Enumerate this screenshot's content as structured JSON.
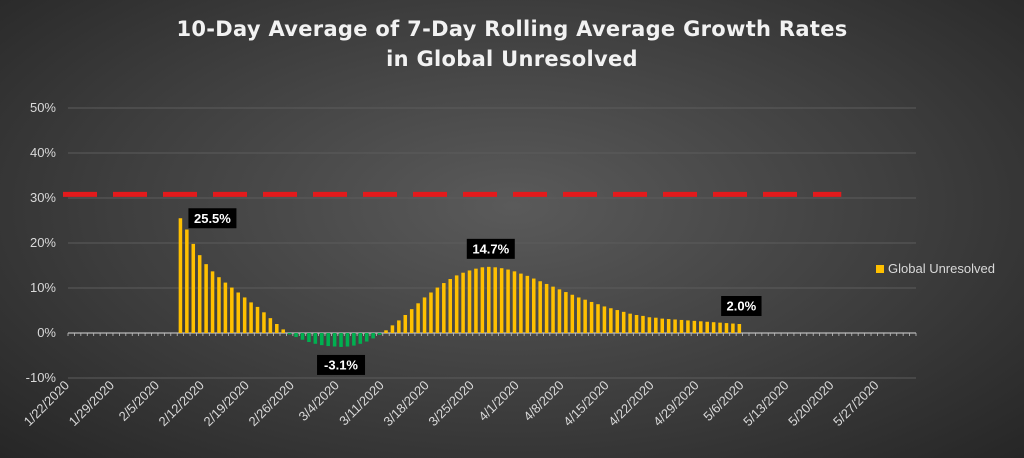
{
  "chart_data": {
    "type": "bar",
    "title_line1": "10-Day Average of 7-Day Rolling Average Growth Rates",
    "title_line2": "in Global Unresolved",
    "xlabel": "",
    "ylabel": "",
    "ylim": [
      -10,
      50
    ],
    "y_ticks": [
      -10,
      0,
      10,
      20,
      30,
      40,
      50
    ],
    "y_tick_labels": [
      "-10%",
      "0%",
      "10%",
      "20%",
      "30%",
      "40%",
      "50%"
    ],
    "x_start": "2020-01-22",
    "x_end": "2020-06-02",
    "x_tick_labels": [
      "1/22/2020",
      "1/29/2020",
      "2/5/2020",
      "2/12/2020",
      "2/19/2020",
      "2/26/2020",
      "3/4/2020",
      "3/11/2020",
      "3/18/2020",
      "3/25/2020",
      "4/1/2020",
      "4/8/2020",
      "4/15/2020",
      "4/22/2020",
      "4/29/2020",
      "5/6/2020",
      "5/13/2020",
      "5/20/2020",
      "5/27/2020"
    ],
    "grid": true,
    "legend_position": "right",
    "reference_line": {
      "y": 30.8,
      "x_from": "2020-01-22",
      "x_to": "2020-05-19",
      "color": "#e31a1c",
      "style": "dashed"
    },
    "positive_color": "#ffc000",
    "negative_color": "#00b050",
    "series": [
      {
        "name": "Global Unresolved",
        "x": [
          "2/8/2020",
          "2/9/2020",
          "2/10/2020",
          "2/11/2020",
          "2/12/2020",
          "2/13/2020",
          "2/14/2020",
          "2/15/2020",
          "2/16/2020",
          "2/17/2020",
          "2/18/2020",
          "2/19/2020",
          "2/20/2020",
          "2/21/2020",
          "2/22/2020",
          "2/23/2020",
          "2/24/2020",
          "2/25/2020",
          "2/26/2020",
          "2/27/2020",
          "2/28/2020",
          "2/29/2020",
          "3/1/2020",
          "3/2/2020",
          "3/3/2020",
          "3/4/2020",
          "3/5/2020",
          "3/6/2020",
          "3/7/2020",
          "3/8/2020",
          "3/9/2020",
          "3/10/2020",
          "3/11/2020",
          "3/12/2020",
          "3/13/2020",
          "3/14/2020",
          "3/15/2020",
          "3/16/2020",
          "3/17/2020",
          "3/18/2020",
          "3/19/2020",
          "3/20/2020",
          "3/21/2020",
          "3/22/2020",
          "3/23/2020",
          "3/24/2020",
          "3/25/2020",
          "3/26/2020",
          "3/27/2020",
          "3/28/2020",
          "3/29/2020",
          "3/30/2020",
          "3/31/2020",
          "4/1/2020",
          "4/2/2020",
          "4/3/2020",
          "4/4/2020",
          "4/5/2020",
          "4/6/2020",
          "4/7/2020",
          "4/8/2020",
          "4/9/2020",
          "4/10/2020",
          "4/11/2020",
          "4/12/2020",
          "4/13/2020",
          "4/14/2020",
          "4/15/2020",
          "4/16/2020",
          "4/17/2020",
          "4/18/2020",
          "4/19/2020",
          "4/20/2020",
          "4/21/2020",
          "4/22/2020",
          "4/23/2020",
          "4/24/2020",
          "4/25/2020",
          "4/26/2020",
          "4/27/2020",
          "4/28/2020",
          "4/29/2020",
          "4/30/2020",
          "5/1/2020",
          "5/2/2020",
          "5/3/2020",
          "5/4/2020",
          "5/5/2020"
        ],
        "values": [
          25.5,
          23.0,
          19.8,
          17.3,
          15.3,
          13.7,
          12.4,
          11.2,
          10.1,
          9.0,
          7.9,
          6.8,
          5.8,
          4.6,
          3.3,
          2.0,
          0.8,
          -0.3,
          -0.9,
          -1.5,
          -2.0,
          -2.4,
          -2.7,
          -2.9,
          -3.0,
          -3.1,
          -3.0,
          -2.8,
          -2.4,
          -1.9,
          -1.2,
          -0.4,
          0.6,
          1.7,
          2.8,
          4.0,
          5.3,
          6.6,
          7.9,
          9.0,
          10.1,
          11.1,
          12.0,
          12.8,
          13.4,
          13.9,
          14.3,
          14.6,
          14.7,
          14.6,
          14.4,
          14.1,
          13.7,
          13.2,
          12.7,
          12.1,
          11.5,
          10.9,
          10.3,
          9.7,
          9.1,
          8.5,
          7.9,
          7.4,
          6.9,
          6.4,
          5.9,
          5.5,
          5.1,
          4.7,
          4.3,
          4.0,
          3.8,
          3.5,
          3.4,
          3.2,
          3.1,
          3.0,
          2.9,
          2.8,
          2.7,
          2.6,
          2.5,
          2.4,
          2.3,
          2.2,
          2.1,
          2.0
        ],
        "color": "#ffc000"
      }
    ],
    "data_labels": [
      {
        "x": "2/8/2020",
        "text": "25.5%"
      },
      {
        "x": "3/4/2020",
        "text": "-3.1%"
      },
      {
        "x": "3/27/2020",
        "text": "14.7%"
      },
      {
        "x": "5/5/2020",
        "text": "2.0%"
      }
    ]
  }
}
